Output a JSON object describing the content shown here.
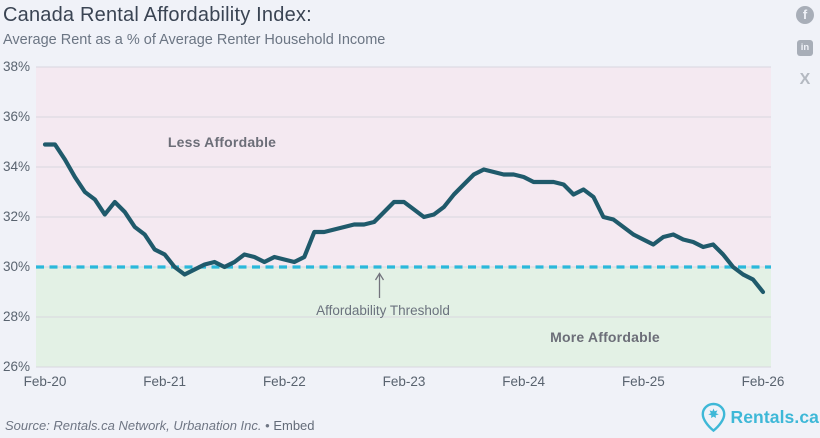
{
  "header": {
    "title": "Canada Rental Affordability Index:",
    "subtitle": "Average Rent as a % of Average Renter Household Income"
  },
  "share": {
    "facebook_glyph": "f",
    "linkedin_glyph": "in",
    "x_glyph": "X"
  },
  "annotations": {
    "less_affordable": "Less Affordable",
    "more_affordable": "More Affordable",
    "threshold_label": "Affordability Threshold"
  },
  "footer": {
    "source_text": "Source: Rentals.ca Network, Urbanation Inc.",
    "bullet": "•",
    "embed_label": "Embed",
    "brand_text": "Rentals.ca"
  },
  "colors": {
    "line": "#1f5a6b",
    "threshold_line": "#2bb8db",
    "less_region": "#f4e9f1",
    "more_region": "#e3f1e5",
    "gridline": "#d9d7e0",
    "arrow": "#73737d",
    "brand": "#3eb8d7"
  },
  "chart_data": {
    "type": "line",
    "title": "Canada Rental Affordability Index:",
    "subtitle": "Average Rent as a % of Average Renter Household Income",
    "ylim": [
      26,
      38
    ],
    "y_ticks": [
      38,
      36,
      34,
      32,
      30,
      28,
      26
    ],
    "y_tick_suffix": "%",
    "x_tick_labels": [
      "Feb-20",
      "Feb-21",
      "Feb-22",
      "Feb-23",
      "Feb-24",
      "Feb-25",
      "Feb-26"
    ],
    "grid": true,
    "threshold": {
      "value": 30,
      "label": "Affordability Threshold"
    },
    "regions": [
      {
        "label": "Less Affordable",
        "from": 30,
        "to": 38,
        "color": "#f4e9f1"
      },
      {
        "label": "More Affordable",
        "from": 26,
        "to": 30,
        "color": "#e3f1e5"
      }
    ],
    "x": [
      "Feb-20",
      "Mar-20",
      "Apr-20",
      "May-20",
      "Jun-20",
      "Jul-20",
      "Aug-20",
      "Sep-20",
      "Oct-20",
      "Nov-20",
      "Dec-20",
      "Jan-21",
      "Feb-21",
      "Mar-21",
      "Apr-21",
      "May-21",
      "Jun-21",
      "Jul-21",
      "Aug-21",
      "Sep-21",
      "Oct-21",
      "Nov-21",
      "Dec-21",
      "Jan-22",
      "Feb-22",
      "Mar-22",
      "Apr-22",
      "May-22",
      "Jun-22",
      "Jul-22",
      "Aug-22",
      "Sep-22",
      "Oct-22",
      "Nov-22",
      "Dec-22",
      "Jan-23",
      "Feb-23",
      "Mar-23",
      "Apr-23",
      "May-23",
      "Jun-23",
      "Jul-23",
      "Aug-23",
      "Sep-23",
      "Oct-23",
      "Nov-23",
      "Dec-23",
      "Jan-24",
      "Feb-24",
      "Mar-24",
      "Apr-24",
      "May-24",
      "Jun-24",
      "Jul-24",
      "Aug-24",
      "Sep-24",
      "Oct-24",
      "Nov-24",
      "Dec-24",
      "Jan-25",
      "Feb-25",
      "Mar-25",
      "Apr-25",
      "May-25",
      "Jun-25",
      "Jul-25",
      "Aug-25",
      "Sep-25",
      "Oct-25",
      "Nov-25",
      "Dec-25",
      "Jan-26",
      "Feb-26"
    ],
    "values": [
      34.9,
      34.9,
      34.3,
      33.6,
      33.0,
      32.7,
      32.1,
      32.6,
      32.2,
      31.6,
      31.3,
      30.7,
      30.5,
      30.0,
      29.7,
      29.9,
      30.1,
      30.2,
      30.0,
      30.2,
      30.5,
      30.4,
      30.2,
      30.4,
      30.3,
      30.2,
      30.4,
      31.4,
      31.4,
      31.5,
      31.6,
      31.7,
      31.7,
      31.8,
      32.2,
      32.6,
      32.6,
      32.3,
      32.0,
      32.1,
      32.4,
      32.9,
      33.3,
      33.7,
      33.9,
      33.8,
      33.7,
      33.7,
      33.6,
      33.4,
      33.4,
      33.4,
      33.3,
      32.9,
      33.1,
      32.8,
      32.0,
      31.9,
      31.6,
      31.3,
      31.1,
      30.9,
      31.2,
      31.3,
      31.1,
      31.0,
      30.8,
      30.9,
      30.5,
      30.0,
      29.7,
      29.5,
      29.0
    ]
  }
}
